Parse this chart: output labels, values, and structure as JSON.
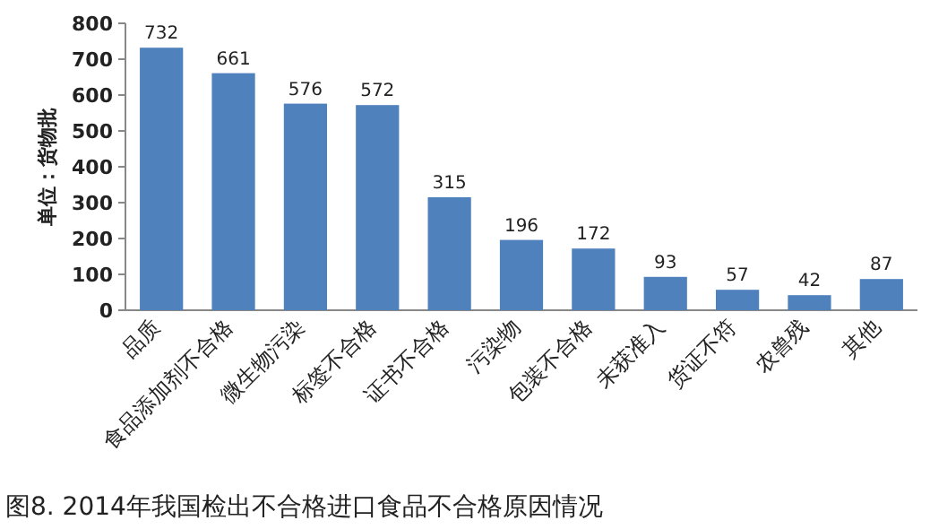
{
  "chart_data": {
    "type": "bar",
    "title": "图8. 2014年我国检出不合格进口食品不合格原因情况",
    "ylabel": "单位：货物批",
    "categories": [
      "品质",
      "食品添加剂不合格",
      "微生物污染",
      "标签不合格",
      "证书不合格",
      "污染物",
      "包装不合格",
      "未获准入",
      "货证不符",
      "农兽残",
      "其他"
    ],
    "values": [
      732,
      661,
      576,
      572,
      315,
      196,
      172,
      93,
      57,
      42,
      87
    ],
    "color": "#4f81bd",
    "ylim": [
      0,
      800
    ],
    "yticks": [
      0,
      100,
      200,
      300,
      400,
      500,
      600,
      700,
      800
    ],
    "data_labels": true,
    "grid": false
  }
}
